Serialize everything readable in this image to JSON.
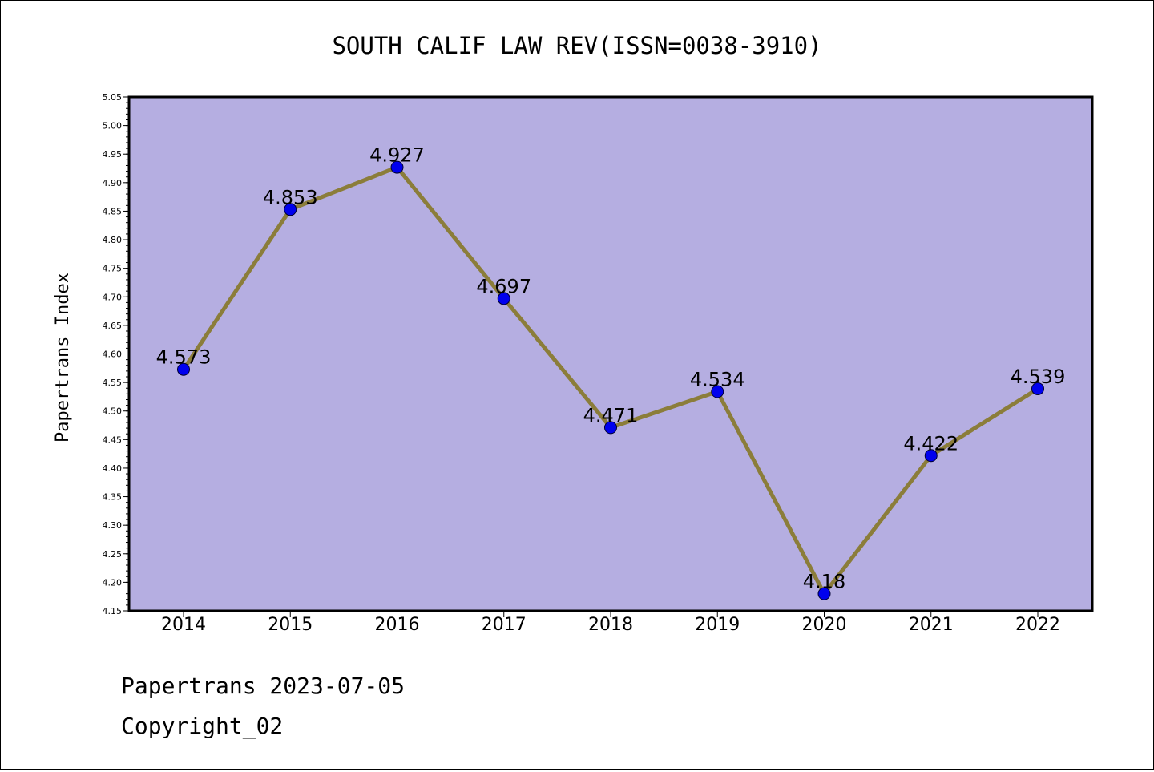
{
  "chart_data": {
    "type": "line",
    "title": "SOUTH CALIF LAW REV(ISSN=0038-3910)",
    "ylabel": "Papertrans Index",
    "xlabel": "",
    "x": [
      "2014",
      "2015",
      "2016",
      "2017",
      "2018",
      "2019",
      "2020",
      "2021",
      "2022"
    ],
    "series": [
      {
        "values": [
          4.573,
          4.853,
          4.927,
          4.697,
          4.471,
          4.534,
          4.18,
          4.422,
          4.539
        ],
        "labels": [
          "4.573",
          "4.853",
          "4.927",
          "4.697",
          "4.471",
          "4.534",
          "4.18",
          "4.422",
          "4.539"
        ]
      }
    ],
    "ylim": [
      4.15,
      5.05
    ],
    "yticks": [
      "4.15",
      "4.20",
      "4.25",
      "4.30",
      "4.35",
      "4.40",
      "4.45",
      "4.50",
      "4.55",
      "4.60",
      "4.65",
      "4.70",
      "4.75",
      "4.80",
      "4.85",
      "4.90",
      "4.95",
      "5.00",
      "5.05"
    ],
    "grid": false,
    "legend": "none",
    "colors": {
      "plot_background": "#b5aee1",
      "line": "#8b7d3a",
      "marker": "#0000ee"
    }
  },
  "footer": {
    "line1": "Papertrans 2023-07-05",
    "line2": "Copyright_02"
  }
}
